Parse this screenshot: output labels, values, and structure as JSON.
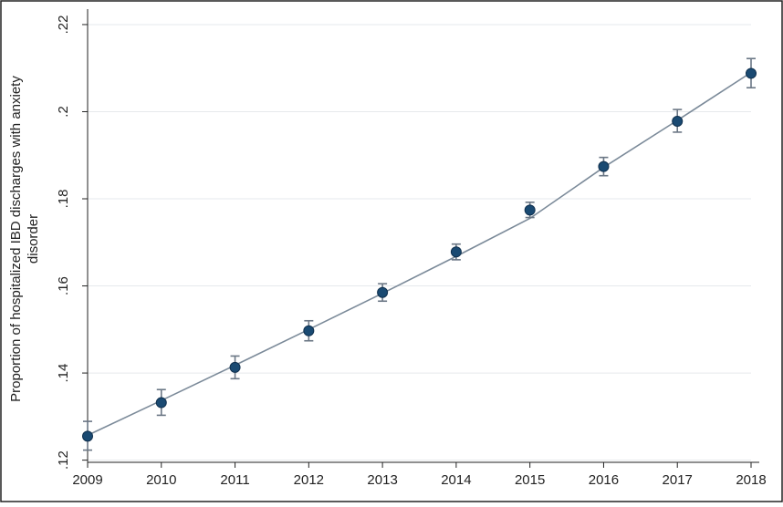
{
  "chart_data": {
    "type": "scatter",
    "title": "",
    "xlabel": "",
    "ylabel_lines": [
      "Proportion of hospitalized IBD  discharges with anxiety",
      "disorder"
    ],
    "x": [
      2009,
      2010,
      2011,
      2012,
      2013,
      2014,
      2015,
      2016,
      2017,
      2018
    ],
    "x_tick_labels": [
      "2009",
      "2010",
      "2011",
      "2012",
      "2013",
      "2014",
      "2015",
      "2016",
      "2017",
      "2018"
    ],
    "y_ticks": [
      0.12,
      0.14,
      0.16,
      0.18,
      0.2,
      0.22
    ],
    "y_tick_labels": [
      ".12",
      ".14",
      ".16",
      ".18",
      ".2",
      ".22"
    ],
    "xlim": [
      2009,
      2018
    ],
    "ylim": [
      0.1195,
      0.2225
    ],
    "grid": true,
    "legend": "none",
    "series": [
      {
        "values": [
          0.1255,
          0.1332,
          0.1413,
          0.1497,
          0.1585,
          0.1678,
          0.1774,
          0.1874,
          0.1978,
          0.2088
        ],
        "ci_lower": [
          0.1223,
          0.1303,
          0.1387,
          0.1474,
          0.1565,
          0.166,
          0.1757,
          0.1853,
          0.1953,
          0.2055
        ],
        "ci_upper": [
          0.1289,
          0.1362,
          0.1439,
          0.152,
          0.1605,
          0.1696,
          0.1792,
          0.1895,
          0.2005,
          0.2122
        ],
        "color": "#1a4a72"
      },
      {
        "type": "line",
        "values": [
          0.1257,
          0.1337,
          0.1418,
          0.15,
          0.1583,
          0.1668,
          0.1755,
          0.1872,
          0.198,
          0.209
        ],
        "color": "#7b8a99"
      }
    ]
  }
}
